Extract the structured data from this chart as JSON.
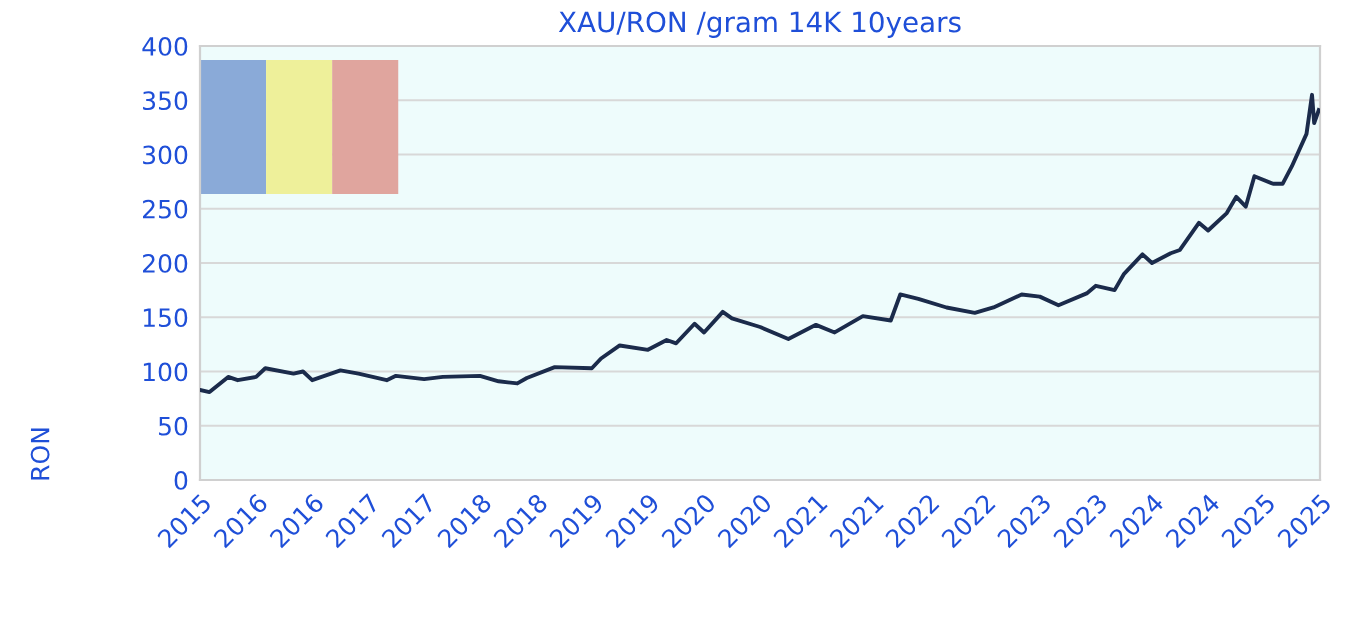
{
  "chart_data": {
    "type": "line",
    "title": "XAU/RON /gram 14K 10years",
    "ylabel": "RON",
    "x": [
      "2015-10",
      "2015-11",
      "2016-01",
      "2016-02",
      "2016-04",
      "2016-05",
      "2016-08",
      "2016-09",
      "2016-10",
      "2017-01",
      "2017-03",
      "2017-06",
      "2017-07",
      "2017-10",
      "2017-12",
      "2018-04",
      "2018-06",
      "2018-08",
      "2018-09",
      "2018-12",
      "2019-04",
      "2019-05",
      "2019-07",
      "2019-10",
      "2019-12",
      "2020-01",
      "2020-03",
      "2020-04",
      "2020-06",
      "2020-07",
      "2020-10",
      "2021-01",
      "2021-04",
      "2021-06",
      "2021-09",
      "2021-12",
      "2022-01",
      "2022-03",
      "2022-06",
      "2022-09",
      "2022-11",
      "2023-02",
      "2023-04",
      "2023-06",
      "2023-09",
      "2023-10",
      "2023-12",
      "2024-01",
      "2024-03",
      "2024-04",
      "2024-06",
      "2024-07",
      "2024-09",
      "2024-10",
      "2024-12",
      "2025-01",
      "2025-02",
      "2025-03",
      "2025-05",
      "2025-06",
      "2025-07",
      "2025-08-18",
      "2025-09-05",
      "2025-09-12",
      "2025-09-27"
    ],
    "series": [
      {
        "color": "#1b2b4b",
        "values": [
          83,
          81,
          95,
          92,
          95,
          103,
          98,
          100,
          92,
          101,
          98,
          92,
          96,
          93,
          95,
          96,
          91,
          89,
          94,
          104,
          103,
          112,
          124,
          120,
          129,
          126,
          144,
          136,
          155,
          149,
          141,
          130,
          143,
          136,
          151,
          147,
          171,
          167,
          159,
          154,
          159,
          171,
          169,
          161,
          172,
          179,
          175,
          190,
          208,
          200,
          209,
          212,
          237,
          230,
          246,
          261,
          252,
          280,
          273,
          273,
          289,
          319,
          355,
          329,
          341
        ]
      }
    ],
    "xlim": [
      "2015-10",
      "2025-10"
    ],
    "xticks": [
      {
        "value": "2015-10",
        "label": "2015"
      },
      {
        "value": "2016-04",
        "label": "2016"
      },
      {
        "value": "2016-10",
        "label": "2016"
      },
      {
        "value": "2017-04",
        "label": "2017"
      },
      {
        "value": "2017-10",
        "label": "2017"
      },
      {
        "value": "2018-04",
        "label": "2018"
      },
      {
        "value": "2018-10",
        "label": "2018"
      },
      {
        "value": "2019-04",
        "label": "2019"
      },
      {
        "value": "2019-10",
        "label": "2019"
      },
      {
        "value": "2020-04",
        "label": "2020"
      },
      {
        "value": "2020-10",
        "label": "2020"
      },
      {
        "value": "2021-04",
        "label": "2021"
      },
      {
        "value": "2021-10",
        "label": "2021"
      },
      {
        "value": "2022-04",
        "label": "2022"
      },
      {
        "value": "2022-10",
        "label": "2022"
      },
      {
        "value": "2023-04",
        "label": "2023"
      },
      {
        "value": "2023-10",
        "label": "2023"
      },
      {
        "value": "2024-04",
        "label": "2024"
      },
      {
        "value": "2024-10",
        "label": "2024"
      },
      {
        "value": "2025-04",
        "label": "2025"
      },
      {
        "value": "2025-10",
        "label": "2025"
      }
    ],
    "ylim": [
      0,
      400
    ],
    "yticks": [
      0,
      50,
      100,
      150,
      200,
      250,
      300,
      350,
      400
    ],
    "grid": "y",
    "marker": "none",
    "line_style": "solid"
  }
}
